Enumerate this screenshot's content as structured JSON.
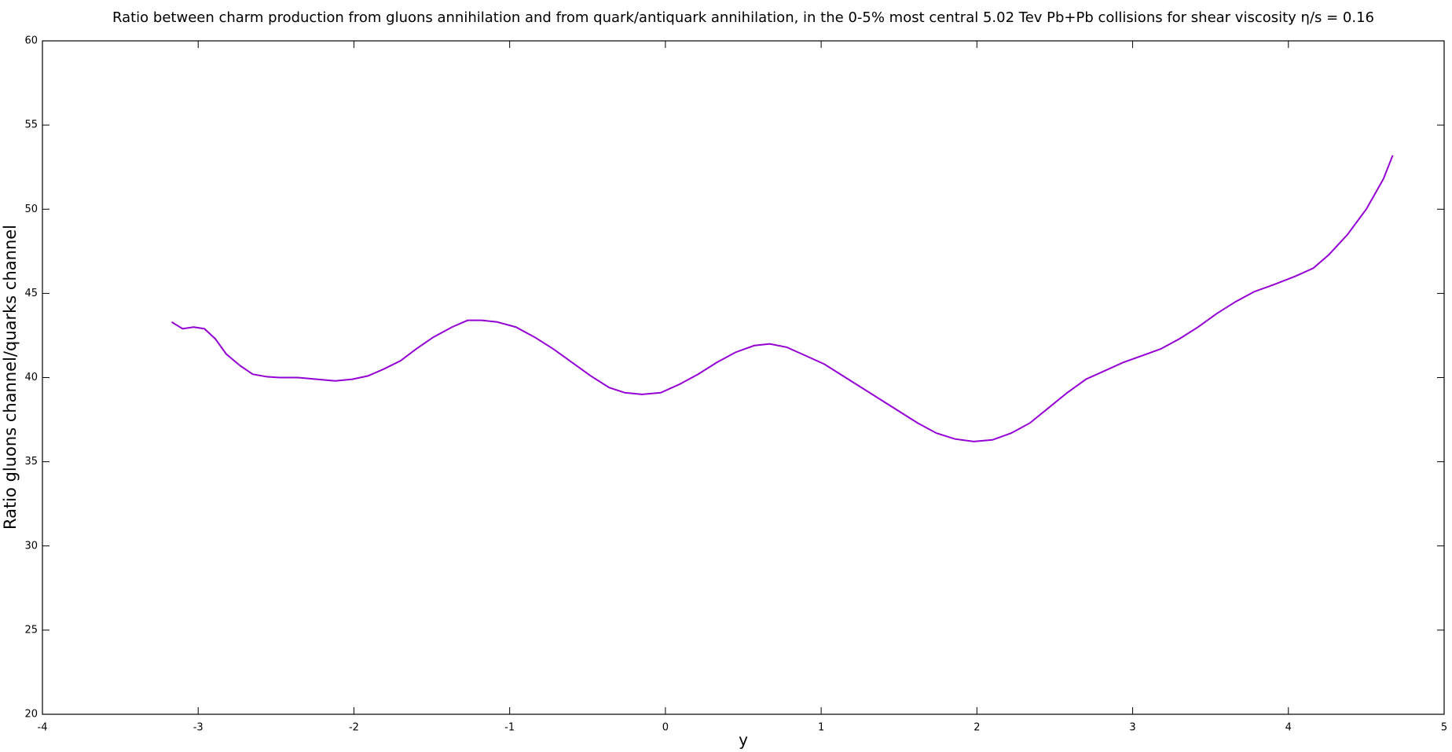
{
  "chart_data": {
    "type": "line",
    "title": "Ratio between charm production from gluons annihilation and from quark/antiquark annihilation, in the 0-5% most central 5.02 Tev Pb+Pb collisions for shear viscosity η/s = 0.16",
    "xlabel": "y",
    "ylabel": "Ratio gluons channel/quarks channel",
    "x": [
      -3.17,
      -3.1,
      -3.03,
      -2.96,
      -2.89,
      -2.82,
      -2.73,
      -2.65,
      -2.56,
      -2.48,
      -2.36,
      -2.24,
      -2.12,
      -2.01,
      -1.91,
      -1.81,
      -1.7,
      -1.6,
      -1.49,
      -1.37,
      -1.27,
      -1.18,
      -1.08,
      -0.96,
      -0.84,
      -0.72,
      -0.6,
      -0.48,
      -0.36,
      -0.26,
      -0.15,
      -0.03,
      0.09,
      0.21,
      0.33,
      0.45,
      0.57,
      0.67,
      0.78,
      0.9,
      1.02,
      1.14,
      1.26,
      1.38,
      1.5,
      1.62,
      1.74,
      1.86,
      1.98,
      2.1,
      2.22,
      2.34,
      2.46,
      2.58,
      2.7,
      2.82,
      2.94,
      3.06,
      3.18,
      3.3,
      3.42,
      3.54,
      3.66,
      3.78,
      3.9,
      4.04,
      4.16,
      4.26,
      4.38,
      4.5,
      4.61,
      4.67
    ],
    "series": [
      {
        "name": "ratio",
        "color": "#9400d3",
        "values": [
          43.3,
          42.9,
          43.0,
          42.9,
          42.3,
          41.4,
          40.7,
          40.2,
          40.05,
          40.0,
          40.0,
          39.9,
          39.8,
          39.9,
          40.1,
          40.5,
          41.0,
          41.7,
          42.4,
          43.0,
          43.4,
          43.4,
          43.3,
          43.0,
          42.4,
          41.7,
          40.9,
          40.1,
          39.4,
          39.1,
          39.0,
          39.1,
          39.6,
          40.2,
          40.9,
          41.5,
          41.9,
          42.0,
          41.8,
          41.3,
          40.8,
          40.1,
          39.4,
          38.7,
          38.0,
          37.3,
          36.7,
          36.35,
          36.2,
          36.3,
          36.7,
          37.3,
          38.2,
          39.1,
          39.9,
          40.4,
          40.9,
          41.3,
          41.7,
          42.3,
          43.0,
          43.8,
          44.5,
          45.1,
          45.5,
          46.0,
          46.5,
          47.3,
          48.5,
          50.0,
          51.8,
          53.2
        ]
      }
    ],
    "xlim": [
      -4,
      5
    ],
    "xticks": [
      -4,
      -3,
      -2,
      -1,
      0,
      1,
      2,
      3,
      4,
      5
    ],
    "ylim": [
      20,
      60
    ],
    "yticks": [
      20,
      25,
      30,
      35,
      40,
      45,
      50,
      55,
      60
    ]
  }
}
